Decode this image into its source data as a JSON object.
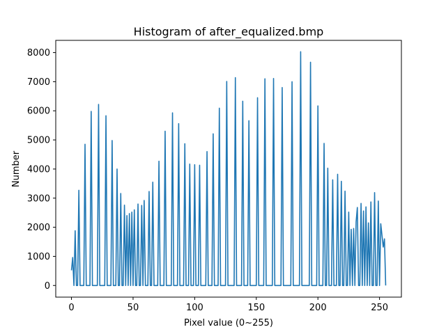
{
  "chart_data": {
    "type": "line",
    "title": "Histogram of after_equalized.bmp",
    "xlabel": "Pixel value (0~255)",
    "ylabel": "Number",
    "xlim": [
      -12.75,
      267.75
    ],
    "ylim": [
      -400,
      8420
    ],
    "xticks": [
      0,
      50,
      100,
      150,
      200,
      250
    ],
    "yticks": [
      0,
      1000,
      2000,
      3000,
      4000,
      5000,
      6000,
      7000,
      8000
    ],
    "grid": false,
    "line_color": "#1f77b4",
    "peaks": [
      [
        0,
        520
      ],
      [
        1,
        960
      ],
      [
        3,
        1880
      ],
      [
        6,
        3270
      ],
      [
        11,
        4850
      ],
      [
        16,
        5980
      ],
      [
        22,
        6220
      ],
      [
        28,
        5830
      ],
      [
        33,
        4980
      ],
      [
        37,
        4000
      ],
      [
        40,
        3160
      ],
      [
        43,
        2760
      ],
      [
        45,
        2400
      ],
      [
        47,
        2470
      ],
      [
        49,
        2520
      ],
      [
        51,
        2600
      ],
      [
        54,
        2800
      ],
      [
        57,
        2750
      ],
      [
        59,
        2920
      ],
      [
        63,
        3230
      ],
      [
        66,
        3550
      ],
      [
        71,
        4270
      ],
      [
        76,
        5300
      ],
      [
        82,
        5930
      ],
      [
        87,
        5560
      ],
      [
        92,
        4870
      ],
      [
        96,
        4170
      ],
      [
        100,
        4150
      ],
      [
        104,
        4130
      ],
      [
        110,
        4600
      ],
      [
        115,
        5210
      ],
      [
        120,
        6090
      ],
      [
        126,
        7010
      ],
      [
        133,
        7140
      ],
      [
        139,
        6330
      ],
      [
        144,
        5660
      ],
      [
        151,
        6450
      ],
      [
        157,
        7100
      ],
      [
        164,
        7110
      ],
      [
        171,
        6800
      ],
      [
        179,
        7000
      ],
      [
        186,
        8030
      ],
      [
        194,
        7670
      ],
      [
        200,
        6170
      ],
      [
        205,
        4880
      ],
      [
        208,
        4030
      ],
      [
        212,
        3630
      ],
      [
        216,
        3820
      ],
      [
        219,
        3580
      ],
      [
        222,
        3240
      ],
      [
        225,
        2520
      ],
      [
        227,
        1930
      ],
      [
        229,
        1960
      ],
      [
        231,
        2190
      ],
      [
        232,
        2680
      ],
      [
        235,
        2820
      ],
      [
        237,
        2560
      ],
      [
        239,
        2700
      ],
      [
        241,
        2150
      ],
      [
        243,
        2870
      ],
      [
        246,
        3190
      ],
      [
        249,
        2900
      ],
      [
        251,
        2120
      ],
      [
        252,
        1720
      ],
      [
        253,
        1320
      ],
      [
        254,
        1600
      ]
    ],
    "end": [
      255,
      0
    ]
  }
}
